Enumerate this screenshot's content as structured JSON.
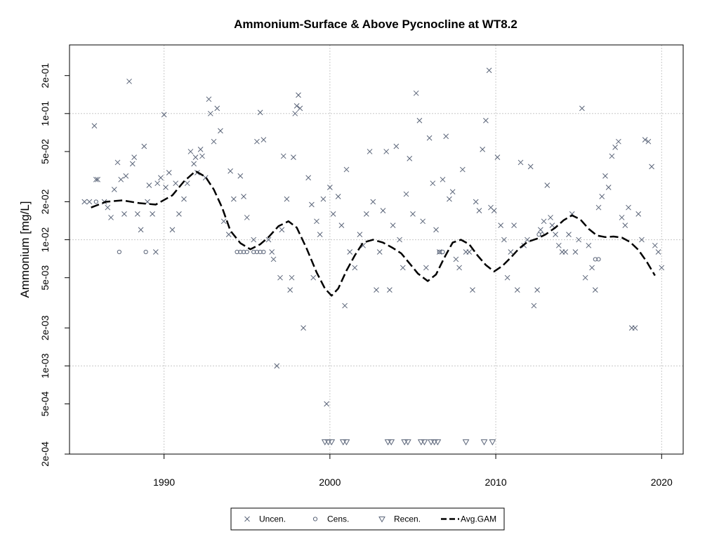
{
  "chart_data": {
    "type": "scatter",
    "title": "Ammonium-Surface & Above Pycnocline at WT8.2",
    "xlabel": "",
    "ylabel": "Ammonium [mg/L]",
    "xlim": [
      1984.3,
      2021.3
    ],
    "ylim": [
      0.0002,
      0.35
    ],
    "y_scale": "log",
    "x_ticks": [
      1990,
      2000,
      2010,
      2020
    ],
    "x_tick_labels": [
      "1990",
      "2000",
      "2010",
      "2020"
    ],
    "y_ticks": [
      0.0002,
      0.0005,
      0.001,
      0.002,
      0.005,
      0.01,
      0.02,
      0.05,
      0.1,
      0.2
    ],
    "y_tick_labels": [
      "2e-04",
      "5e-04",
      "1e-03",
      "2e-03",
      "5e-03",
      "1e-02",
      "2e-02",
      "5e-02",
      "1e-01",
      "2e-01"
    ],
    "grid": true,
    "legend": {
      "position": "bottom",
      "entries": [
        {
          "label": "Uncen.",
          "marker": "x"
        },
        {
          "label": "Cens.",
          "marker": "circle"
        },
        {
          "label": "Recen.",
          "marker": "triangle-down"
        },
        {
          "label": "Avg.GAM",
          "marker": "dashed-line"
        }
      ]
    },
    "colors": {
      "points": "#5a6478",
      "gam": "#000000",
      "grid": "#c8c8c8"
    },
    "series": [
      {
        "name": "Uncen.",
        "points": [
          [
            1985.2,
            0.02
          ],
          [
            1985.5,
            0.02
          ],
          [
            1985.8,
            0.08
          ],
          [
            1985.9,
            0.03
          ],
          [
            1986.0,
            0.03
          ],
          [
            1986.4,
            0.02
          ],
          [
            1986.6,
            0.018
          ],
          [
            1986.8,
            0.015
          ],
          [
            1987.0,
            0.025
          ],
          [
            1987.2,
            0.041
          ],
          [
            1987.4,
            0.03
          ],
          [
            1987.6,
            0.016
          ],
          [
            1987.7,
            0.032
          ],
          [
            1987.9,
            0.18
          ],
          [
            1988.1,
            0.04
          ],
          [
            1988.2,
            0.045
          ],
          [
            1988.4,
            0.016
          ],
          [
            1988.6,
            0.012
          ],
          [
            1988.8,
            0.055
          ],
          [
            1989.0,
            0.02
          ],
          [
            1989.1,
            0.027
          ],
          [
            1989.3,
            0.016
          ],
          [
            1989.5,
            0.008
          ],
          [
            1989.6,
            0.028
          ],
          [
            1989.8,
            0.031
          ],
          [
            1990.0,
            0.098
          ],
          [
            1990.1,
            0.026
          ],
          [
            1990.3,
            0.034
          ],
          [
            1990.5,
            0.012
          ],
          [
            1990.7,
            0.028
          ],
          [
            1990.9,
            0.016
          ],
          [
            1991.2,
            0.021
          ],
          [
            1991.4,
            0.028
          ],
          [
            1991.6,
            0.05
          ],
          [
            1991.8,
            0.04
          ],
          [
            1991.9,
            0.045
          ],
          [
            1992.0,
            0.034
          ],
          [
            1992.2,
            0.052
          ],
          [
            1992.3,
            0.046
          ],
          [
            1992.5,
            0.031
          ],
          [
            1992.7,
            0.13
          ],
          [
            1992.8,
            0.1
          ],
          [
            1993.0,
            0.06
          ],
          [
            1993.2,
            0.11
          ],
          [
            1993.4,
            0.073
          ],
          [
            1993.6,
            0.014
          ],
          [
            1993.9,
            0.011
          ],
          [
            1994.0,
            0.035
          ],
          [
            1994.2,
            0.021
          ],
          [
            1994.6,
            0.032
          ],
          [
            1994.8,
            0.022
          ],
          [
            1995.0,
            0.015
          ],
          [
            1995.4,
            0.01
          ],
          [
            1995.6,
            0.06
          ],
          [
            1995.8,
            0.102
          ],
          [
            1996.0,
            0.062
          ],
          [
            1996.3,
            0.01
          ],
          [
            1996.5,
            0.008
          ],
          [
            1996.6,
            0.007
          ],
          [
            1996.8,
            0.001
          ],
          [
            1997.0,
            0.005
          ],
          [
            1997.1,
            0.012
          ],
          [
            1997.2,
            0.046
          ],
          [
            1997.4,
            0.021
          ],
          [
            1997.6,
            0.004
          ],
          [
            1997.7,
            0.005
          ],
          [
            1997.8,
            0.045
          ],
          [
            1997.9,
            0.1
          ],
          [
            1998.0,
            0.115
          ],
          [
            1998.1,
            0.14
          ],
          [
            1998.2,
            0.11
          ],
          [
            1998.4,
            0.002
          ],
          [
            1998.7,
            0.031
          ],
          [
            1998.9,
            0.019
          ],
          [
            1999.0,
            0.005
          ],
          [
            1999.2,
            0.014
          ],
          [
            1999.4,
            0.011
          ],
          [
            1999.6,
            0.021
          ],
          [
            1999.8,
            0.0005
          ],
          [
            2000.0,
            0.026
          ],
          [
            2000.2,
            0.016
          ],
          [
            2000.5,
            0.022
          ],
          [
            2000.7,
            0.013
          ],
          [
            2000.9,
            0.003
          ],
          [
            2001.0,
            0.036
          ],
          [
            2001.2,
            0.008
          ],
          [
            2001.5,
            0.006
          ],
          [
            2001.8,
            0.011
          ],
          [
            2002.0,
            0.009
          ],
          [
            2002.2,
            0.016
          ],
          [
            2002.4,
            0.05
          ],
          [
            2002.6,
            0.02
          ],
          [
            2002.8,
            0.004
          ],
          [
            2003.0,
            0.008
          ],
          [
            2003.2,
            0.017
          ],
          [
            2003.4,
            0.05
          ],
          [
            2003.6,
            0.004
          ],
          [
            2003.8,
            0.013
          ],
          [
            2004.0,
            0.055
          ],
          [
            2004.2,
            0.01
          ],
          [
            2004.4,
            0.006
          ],
          [
            2004.6,
            0.023
          ],
          [
            2004.8,
            0.044
          ],
          [
            2005.0,
            0.016
          ],
          [
            2005.2,
            0.145
          ],
          [
            2005.4,
            0.088
          ],
          [
            2005.6,
            0.014
          ],
          [
            2005.8,
            0.006
          ],
          [
            2006.0,
            0.064
          ],
          [
            2006.2,
            0.028
          ],
          [
            2006.4,
            0.012
          ],
          [
            2006.6,
            0.008
          ],
          [
            2006.8,
            0.03
          ],
          [
            2007.0,
            0.066
          ],
          [
            2007.2,
            0.021
          ],
          [
            2007.4,
            0.024
          ],
          [
            2007.6,
            0.007
          ],
          [
            2007.8,
            0.006
          ],
          [
            2008.0,
            0.036
          ],
          [
            2008.2,
            0.008
          ],
          [
            2008.4,
            0.008
          ],
          [
            2008.6,
            0.004
          ],
          [
            2008.8,
            0.02
          ],
          [
            2009.0,
            0.017
          ],
          [
            2009.2,
            0.052
          ],
          [
            2009.4,
            0.088
          ],
          [
            2009.6,
            0.22
          ],
          [
            2009.7,
            0.018
          ],
          [
            2009.9,
            0.017
          ],
          [
            2010.1,
            0.045
          ],
          [
            2010.3,
            0.013
          ],
          [
            2010.5,
            0.01
          ],
          [
            2010.7,
            0.005
          ],
          [
            2010.9,
            0.008
          ],
          [
            2011.1,
            0.013
          ],
          [
            2011.3,
            0.004
          ],
          [
            2011.5,
            0.041
          ],
          [
            2011.7,
            0.009
          ],
          [
            2011.9,
            0.01
          ],
          [
            2012.1,
            0.038
          ],
          [
            2012.3,
            0.003
          ],
          [
            2012.5,
            0.004
          ],
          [
            2012.7,
            0.012
          ],
          [
            2012.9,
            0.014
          ],
          [
            2013.1,
            0.027
          ],
          [
            2013.3,
            0.015
          ],
          [
            2013.4,
            0.013
          ],
          [
            2013.6,
            0.011
          ],
          [
            2013.8,
            0.009
          ],
          [
            2014.0,
            0.008
          ],
          [
            2014.2,
            0.008
          ],
          [
            2014.4,
            0.011
          ],
          [
            2014.6,
            0.016
          ],
          [
            2014.8,
            0.008
          ],
          [
            2015.0,
            0.01
          ],
          [
            2015.2,
            0.11
          ],
          [
            2015.4,
            0.005
          ],
          [
            2015.6,
            0.009
          ],
          [
            2015.8,
            0.006
          ],
          [
            2016.0,
            0.004
          ],
          [
            2016.2,
            0.018
          ],
          [
            2016.4,
            0.022
          ],
          [
            2016.6,
            0.032
          ],
          [
            2016.8,
            0.026
          ],
          [
            2017.0,
            0.046
          ],
          [
            2017.2,
            0.054
          ],
          [
            2017.4,
            0.06
          ],
          [
            2017.6,
            0.015
          ],
          [
            2017.8,
            0.013
          ],
          [
            2018.0,
            0.018
          ],
          [
            2018.2,
            0.002
          ],
          [
            2018.4,
            0.002
          ],
          [
            2018.6,
            0.016
          ],
          [
            2018.8,
            0.01
          ],
          [
            2019.0,
            0.062
          ],
          [
            2019.2,
            0.06
          ],
          [
            2019.4,
            0.038
          ],
          [
            2019.6,
            0.009
          ],
          [
            2019.8,
            0.008
          ],
          [
            2020.0,
            0.006
          ]
        ]
      },
      {
        "name": "Cens.",
        "points": [
          [
            1985.9,
            0.02
          ],
          [
            1987.3,
            0.008
          ],
          [
            1988.9,
            0.008
          ],
          [
            1994.4,
            0.008
          ],
          [
            1994.6,
            0.008
          ],
          [
            1994.8,
            0.008
          ],
          [
            1995.0,
            0.008
          ],
          [
            1995.4,
            0.008
          ],
          [
            1995.6,
            0.008
          ],
          [
            1995.8,
            0.008
          ],
          [
            1996.0,
            0.008
          ],
          [
            2006.6,
            0.008
          ],
          [
            2006.8,
            0.008
          ],
          [
            2012.6,
            0.011
          ],
          [
            2012.8,
            0.011
          ],
          [
            2016.0,
            0.007
          ],
          [
            2016.2,
            0.007
          ]
        ]
      },
      {
        "name": "Recen.",
        "points": [
          [
            1999.7,
            0.00025
          ],
          [
            1999.9,
            0.00025
          ],
          [
            2000.1,
            0.00025
          ],
          [
            2000.8,
            0.00025
          ],
          [
            2001.0,
            0.00025
          ],
          [
            2003.5,
            0.00025
          ],
          [
            2003.7,
            0.00025
          ],
          [
            2004.5,
            0.00025
          ],
          [
            2004.7,
            0.00025
          ],
          [
            2005.5,
            0.00025
          ],
          [
            2005.7,
            0.00025
          ],
          [
            2006.1,
            0.00025
          ],
          [
            2006.3,
            0.00025
          ],
          [
            2006.5,
            0.00025
          ],
          [
            2008.2,
            0.00025
          ],
          [
            2009.3,
            0.00025
          ],
          [
            2009.8,
            0.00025
          ]
        ]
      },
      {
        "name": "Avg.GAM",
        "points": [
          [
            1985.6,
            0.018
          ],
          [
            1986.5,
            0.02
          ],
          [
            1987.5,
            0.0205
          ],
          [
            1988.5,
            0.0195
          ],
          [
            1989.5,
            0.019
          ],
          [
            1990.5,
            0.0225
          ],
          [
            1991.2,
            0.029
          ],
          [
            1991.9,
            0.035
          ],
          [
            1992.5,
            0.0315
          ],
          [
            1993.0,
            0.025
          ],
          [
            1993.5,
            0.018
          ],
          [
            1994.0,
            0.0118
          ],
          [
            1994.6,
            0.0094
          ],
          [
            1995.2,
            0.0084
          ],
          [
            1995.8,
            0.0092
          ],
          [
            1996.3,
            0.0105
          ],
          [
            1996.9,
            0.0128
          ],
          [
            1997.5,
            0.014
          ],
          [
            1998.0,
            0.0125
          ],
          [
            1998.6,
            0.0085
          ],
          [
            1999.2,
            0.0055
          ],
          [
            1999.7,
            0.0041
          ],
          [
            2000.1,
            0.0036
          ],
          [
            2000.5,
            0.0041
          ],
          [
            2001.0,
            0.0057
          ],
          [
            2001.5,
            0.0075
          ],
          [
            2002.0,
            0.0095
          ],
          [
            2002.6,
            0.01
          ],
          [
            2003.2,
            0.0095
          ],
          [
            2003.8,
            0.0086
          ],
          [
            2004.3,
            0.0078
          ],
          [
            2004.8,
            0.0065
          ],
          [
            2005.3,
            0.0054
          ],
          [
            2005.9,
            0.0047
          ],
          [
            2006.4,
            0.0053
          ],
          [
            2006.9,
            0.0072
          ],
          [
            2007.4,
            0.0095
          ],
          [
            2007.9,
            0.01
          ],
          [
            2008.4,
            0.0092
          ],
          [
            2008.9,
            0.0075
          ],
          [
            2009.4,
            0.0063
          ],
          [
            2009.9,
            0.0056
          ],
          [
            2010.4,
            0.0062
          ],
          [
            2010.9,
            0.0072
          ],
          [
            2011.4,
            0.0085
          ],
          [
            2011.9,
            0.0096
          ],
          [
            2012.5,
            0.0102
          ],
          [
            2013.0,
            0.011
          ],
          [
            2013.6,
            0.0125
          ],
          [
            2014.1,
            0.0143
          ],
          [
            2014.6,
            0.0156
          ],
          [
            2015.1,
            0.0145
          ],
          [
            2015.6,
            0.0122
          ],
          [
            2016.1,
            0.0108
          ],
          [
            2016.6,
            0.0105
          ],
          [
            2017.1,
            0.0106
          ],
          [
            2017.6,
            0.0104
          ],
          [
            2018.1,
            0.0096
          ],
          [
            2018.6,
            0.0083
          ],
          [
            2019.1,
            0.0067
          ],
          [
            2019.6,
            0.0052
          ]
        ]
      }
    ]
  }
}
